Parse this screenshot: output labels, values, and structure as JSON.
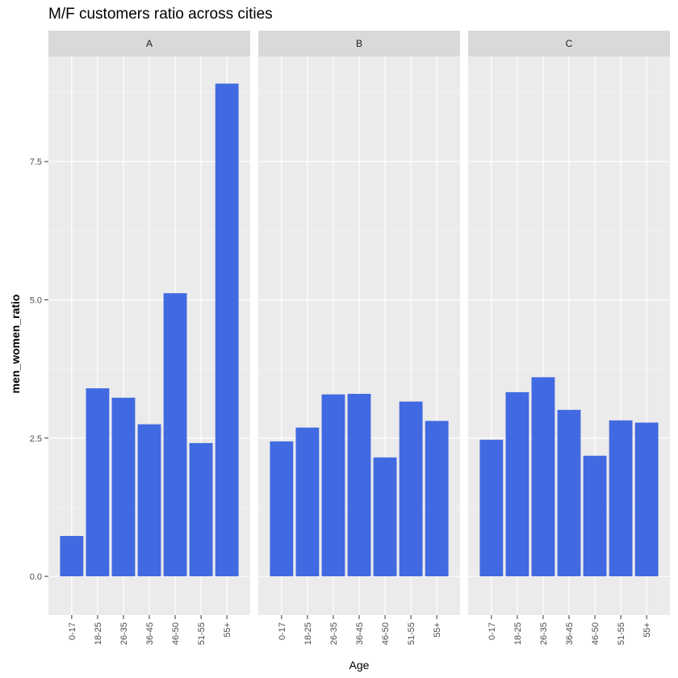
{
  "chart_data": {
    "type": "bar",
    "title": "M/F customers ratio across cities",
    "xlabel": "Age",
    "ylabel": "men_women_ratio",
    "ylim": [
      -0.7,
      9.4
    ],
    "yticks": [
      {
        "value": 0.0,
        "label": "0.0"
      },
      {
        "value": 2.5,
        "label": "2.5"
      },
      {
        "value": 5.0,
        "label": "5.0"
      },
      {
        "value": 7.5,
        "label": "7.5"
      }
    ],
    "categories": [
      "0-17",
      "18-25",
      "26-35",
      "36-45",
      "46-50",
      "51-55",
      "55+"
    ],
    "grid": true,
    "colors": {
      "bar": "#4169E1",
      "panel": "#EBEBEB",
      "strip": "#D9D9D9",
      "grid_major": "#FFFFFF",
      "grid_minor": "#F4F4F4",
      "text": "#4D4D4D"
    },
    "facets": [
      {
        "label": "A",
        "values": [
          0.73,
          3.4,
          3.23,
          2.75,
          5.12,
          2.41,
          8.91
        ]
      },
      {
        "label": "B",
        "values": [
          2.44,
          2.69,
          3.29,
          3.3,
          2.15,
          3.16,
          2.81
        ]
      },
      {
        "label": "C",
        "values": [
          2.47,
          3.33,
          3.6,
          3.01,
          2.18,
          2.82,
          2.78
        ]
      }
    ]
  }
}
